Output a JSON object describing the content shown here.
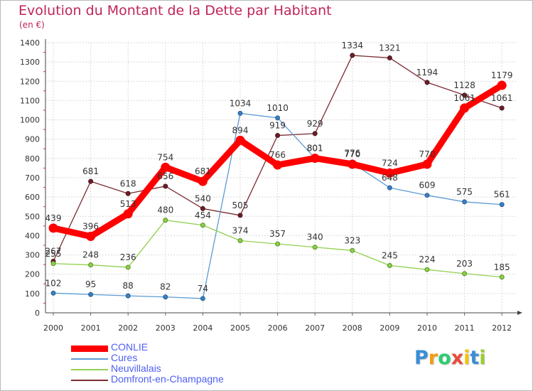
{
  "title": "Evolution du Montant de la Dette par Habitant",
  "unit_label": "(en €)",
  "logo_text": "Proxiti",
  "chart_data": {
    "type": "line",
    "title": "Evolution du Montant de la Dette par Habitant",
    "ylabel": "(en €)",
    "xlabel": "",
    "x": [
      "2000",
      "2001",
      "2002",
      "2003",
      "2004",
      "2005",
      "2006",
      "2007",
      "2008",
      "2009",
      "2010",
      "2011",
      "2012"
    ],
    "yticks": [
      0,
      100,
      200,
      300,
      400,
      500,
      600,
      700,
      800,
      900,
      1000,
      1100,
      1200,
      1300,
      1400
    ],
    "ylim": [
      0,
      1400
    ],
    "grid": true,
    "legend_position": "bottom-left",
    "series": [
      {
        "name": "CONLIE",
        "color": "#ff0000",
        "values": [
          439,
          396,
          513,
          754,
          681,
          894,
          766,
          801,
          770,
          724,
          770,
          1061,
          1179
        ]
      },
      {
        "name": "Cures",
        "color": "#5b9bd5",
        "values": [
          102,
          95,
          88,
          82,
          74,
          1034,
          1010,
          801,
          776,
          648,
          609,
          575,
          561
        ]
      },
      {
        "name": "Neuvillalais",
        "color": "#92d050",
        "values": [
          255,
          248,
          236,
          480,
          454,
          374,
          357,
          340,
          323,
          245,
          224,
          203,
          185
        ]
      },
      {
        "name": "Domfront-en-Champagne",
        "color": "#7b2c34",
        "values": [
          267,
          681,
          618,
          656,
          540,
          505,
          919,
          929,
          1334,
          1321,
          1194,
          1128,
          1061
        ]
      }
    ]
  }
}
